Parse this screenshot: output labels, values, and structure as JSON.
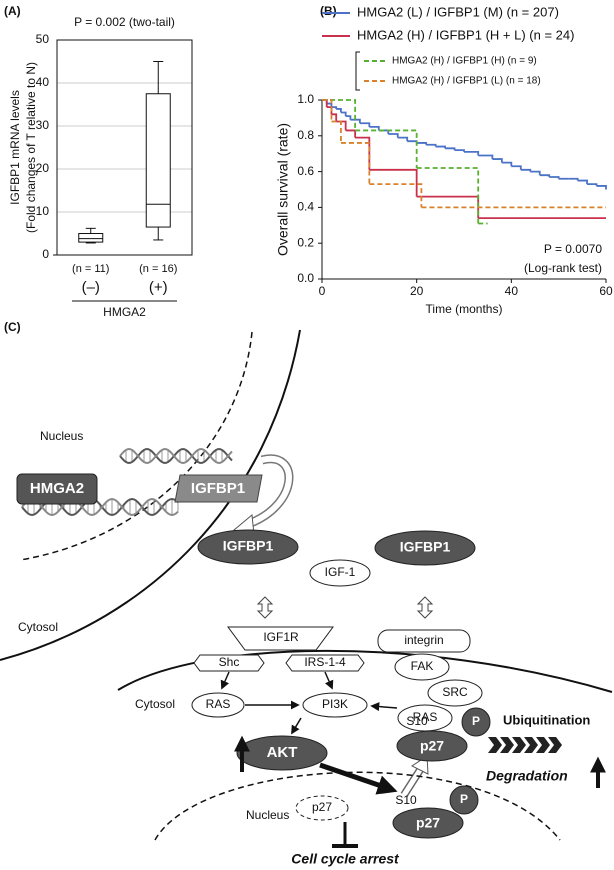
{
  "chart_data": [
    {
      "type": "box",
      "panel_label": "(A)",
      "title": "P = 0.002 (two-tail)",
      "y_label": [
        "IGFBP1 mRNA levels",
        "(Fold changes of T relative to N)"
      ],
      "categories": [
        "(–)",
        "(+)"
      ],
      "n_labels": [
        "(n = 11)",
        "(n = 16)"
      ],
      "group_label": "HMGA2",
      "boxes": [
        {
          "min": 2.8,
          "q1": 3.0,
          "median": 3.8,
          "q3": 5.0,
          "max": 6.2
        },
        {
          "min": 3.5,
          "q1": 6.5,
          "median": 11.8,
          "q3": 37.5,
          "max": 45
        }
      ],
      "color": "#ffffff",
      "ylim": [
        0,
        50
      ],
      "yticks": [
        0,
        10,
        20,
        30,
        40,
        50
      ],
      "grid": true
    },
    {
      "type": "step",
      "panel_label": "(B)",
      "y_label": "Overall survival (rate)",
      "x_label": "Time (months)",
      "annotations": [
        "P = 0.0070",
        "(Log-rank test)"
      ],
      "xlim": [
        0,
        60
      ],
      "xticks": [
        0,
        20,
        40,
        60
      ],
      "ylim": [
        0,
        1
      ],
      "yticks": [
        {
          "value": 0,
          "label": "0.0"
        },
        0.2,
        0.4,
        0.6,
        0.8,
        {
          "value": 1,
          "label": "1.0"
        }
      ],
      "grid": false,
      "series": [
        {
          "name": "HMGA2 (L) / IGFBP1 (M) (n = 207)",
          "color": "#4a72c6",
          "dashed": false,
          "x": [
            0,
            1,
            2,
            3,
            4,
            5,
            6,
            8,
            10,
            12,
            14,
            16,
            18,
            20,
            22,
            24,
            26,
            28,
            30,
            33,
            36,
            38,
            40,
            42,
            44,
            46,
            48,
            50,
            52,
            54,
            56,
            58,
            60
          ],
          "values": [
            1,
            0.98,
            0.96,
            0.95,
            0.93,
            0.91,
            0.89,
            0.87,
            0.85,
            0.83,
            0.81,
            0.79,
            0.77,
            0.76,
            0.75,
            0.74,
            0.73,
            0.72,
            0.71,
            0.69,
            0.67,
            0.65,
            0.63,
            0.61,
            0.6,
            0.58,
            0.57,
            0.56,
            0.56,
            0.55,
            0.53,
            0.52,
            0.5
          ]
        },
        {
          "name": "HMGA2 (H) / IGFBP1 (H + L) (n = 24)",
          "color": "#c8304c",
          "dashed": false,
          "x": [
            0,
            1,
            2,
            3,
            5,
            7,
            10,
            20,
            33,
            60
          ],
          "values": [
            1,
            0.96,
            0.92,
            0.88,
            0.83,
            0.79,
            0.61,
            0.46,
            0.34,
            0.34
          ]
        },
        {
          "name": "HMGA2 (H) / IGFBP1 (H) (n = 9)",
          "color": "#58b030",
          "dashed": true,
          "x": [
            0,
            7,
            20,
            33,
            35
          ],
          "values": [
            1,
            0.83,
            0.62,
            0.31,
            0.31
          ]
        },
        {
          "name": "HMGA2 (H) / IGFBP1 (L) (n = 18)",
          "color": "#d9822b",
          "dashed": true,
          "x": [
            0,
            2,
            4,
            10,
            21,
            60
          ],
          "values": [
            1,
            0.88,
            0.76,
            0.53,
            0.4,
            0.4
          ]
        }
      ]
    }
  ],
  "diagram": {
    "nodes": [
      "(C)",
      "Nucleus",
      "HMGA2",
      "IGFBP1",
      "Cytosol",
      "IGFBP1",
      "IGF-1",
      "IGFBP1",
      "IGF1R",
      "integrin",
      "Shc",
      "IRS-1-4",
      "FAK",
      "SRC",
      "Cytosol",
      "RAS",
      "PI3K",
      "RAS",
      "AKT",
      "S10",
      "P",
      "p27",
      "Ubiquitination",
      "Degradation",
      "Nucleus",
      "p27",
      "S10",
      "P",
      "p27",
      "Cell cycle arrest"
    ]
  }
}
